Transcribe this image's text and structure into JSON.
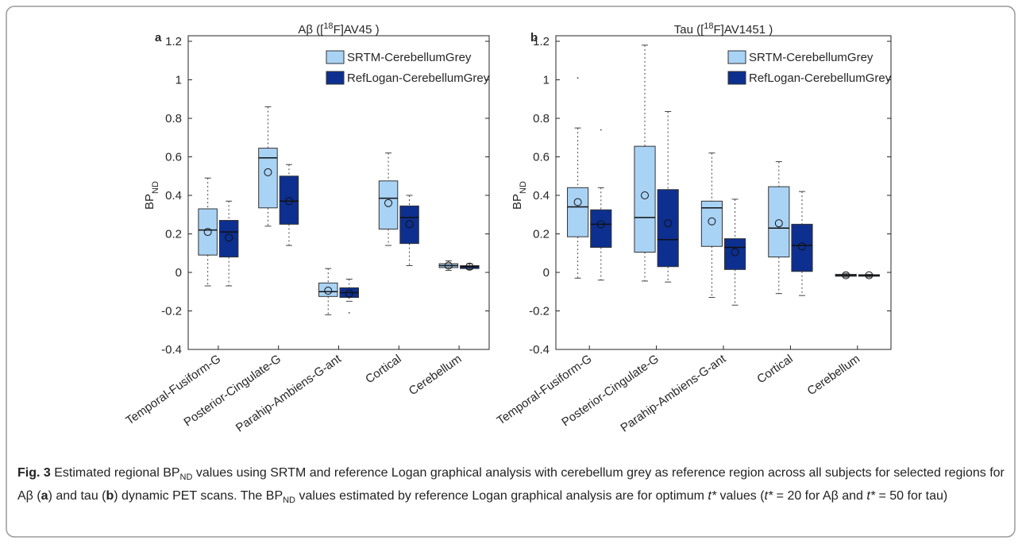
{
  "chart_data": [
    {
      "type": "box",
      "panel_label": "a",
      "title": [
        {
          "text": "Aβ (["
        },
        {
          "text": "18",
          "style": "sup"
        },
        {
          "text": "F]AV45 )"
        }
      ],
      "ylabel": [
        {
          "text": "BP"
        },
        {
          "text": "ND",
          "style": "sub"
        }
      ],
      "categories": [
        "Temporal-Fusiform-G",
        "Posterior-Cingulate-G",
        "Parahip-Ambiens-G-ant",
        "Cortical",
        "Cerebellum"
      ],
      "ylim": [
        -0.4,
        1.2
      ],
      "yticks": [
        -0.4,
        -0.2,
        0,
        0.2,
        0.4,
        0.6,
        0.8,
        1,
        1.2
      ],
      "legend": "upper right",
      "series": [
        {
          "name": "SRTM-CerebellumGrey",
          "color": "#a9d3f5",
          "whislo": [
            -0.07,
            0.24,
            -0.22,
            0.14,
            0.01
          ],
          "q1": [
            0.09,
            0.335,
            -0.125,
            0.225,
            0.025
          ],
          "median": [
            0.22,
            0.595,
            -0.1,
            0.385,
            0.035
          ],
          "q3": [
            0.33,
            0.645,
            -0.055,
            0.475,
            0.045
          ],
          "whishi": [
            0.49,
            0.86,
            0.02,
            0.62,
            0.06
          ],
          "mean": [
            0.21,
            0.52,
            -0.095,
            0.36,
            0.035
          ],
          "outliers": [
            [],
            [],
            [],
            [],
            []
          ]
        },
        {
          "name": "RefLogan-CerebellumGrey",
          "color": "#0d2f8f",
          "whislo": [
            -0.07,
            0.14,
            -0.15,
            0.035,
            0.015
          ],
          "q1": [
            0.08,
            0.25,
            -0.13,
            0.15,
            0.02
          ],
          "median": [
            0.21,
            0.37,
            -0.105,
            0.285,
            0.03
          ],
          "q3": [
            0.27,
            0.5,
            -0.08,
            0.345,
            0.035
          ],
          "whishi": [
            0.37,
            0.56,
            -0.035,
            0.4,
            0.045
          ],
          "mean": [
            0.18,
            0.37,
            -0.11,
            0.25,
            0.03
          ],
          "outliers": [
            [],
            [],
            [
              -0.21
            ],
            [],
            []
          ]
        }
      ]
    },
    {
      "type": "box",
      "panel_label": "b",
      "title": [
        {
          "text": "Tau (["
        },
        {
          "text": "18",
          "style": "sup"
        },
        {
          "text": "F]AV1451 )"
        }
      ],
      "ylabel": [
        {
          "text": "BP"
        },
        {
          "text": "ND",
          "style": "sub"
        }
      ],
      "categories": [
        "Temporal-Fusiform-G",
        "Posterior-Cingulate-G",
        "Parahip-Ambiens-G-ant",
        "Cortical",
        "Cerebellum"
      ],
      "ylim": [
        -0.4,
        1.2
      ],
      "yticks": [
        -0.4,
        -0.2,
        0,
        0.2,
        0.4,
        0.6,
        0.8,
        1,
        1.2
      ],
      "legend": "upper right",
      "series": [
        {
          "name": "SRTM-CerebellumGrey",
          "color": "#a9d3f5",
          "whislo": [
            -0.03,
            -0.045,
            -0.13,
            -0.11,
            -0.025
          ],
          "q1": [
            0.185,
            0.105,
            0.135,
            0.08,
            -0.02
          ],
          "median": [
            0.34,
            0.285,
            0.335,
            0.23,
            -0.015
          ],
          "q3": [
            0.44,
            0.655,
            0.37,
            0.445,
            -0.01
          ],
          "whishi": [
            0.75,
            1.18,
            0.62,
            0.575,
            -0.005
          ],
          "mean": [
            0.365,
            0.4,
            0.265,
            0.255,
            -0.015
          ],
          "outliers": [
            [
              1.01
            ],
            [],
            [],
            [],
            []
          ]
        },
        {
          "name": "RefLogan-CerebellumGrey",
          "color": "#0d2f8f",
          "whislo": [
            -0.04,
            -0.05,
            -0.17,
            -0.12,
            -0.025
          ],
          "q1": [
            0.13,
            0.03,
            0.015,
            0.005,
            -0.02
          ],
          "median": [
            0.25,
            0.17,
            0.13,
            0.14,
            -0.015
          ],
          "q3": [
            0.325,
            0.43,
            0.175,
            0.25,
            -0.012
          ],
          "whishi": [
            0.44,
            0.835,
            0.38,
            0.42,
            -0.01
          ],
          "mean": [
            0.25,
            0.255,
            0.105,
            0.135,
            -0.015
          ],
          "outliers": [
            [
              0.74
            ],
            [],
            [],
            [],
            []
          ]
        }
      ]
    }
  ],
  "caption": [
    {
      "text": "Fig. 3",
      "style": "bold"
    },
    {
      "text": " Estimated regional BP"
    },
    {
      "text": "ND",
      "style": "sub"
    },
    {
      "text": " values using SRTM and reference Logan graphical analysis with cerebellum grey as reference region across all subjects for selected regions for Aβ ("
    },
    {
      "text": "a",
      "style": "bold"
    },
    {
      "text": ") and tau ("
    },
    {
      "text": "b",
      "style": "bold"
    },
    {
      "text": ") dynamic PET scans. The BP"
    },
    {
      "text": "ND",
      "style": "sub"
    },
    {
      "text": " values estimated by reference Logan graphical analysis are for optimum "
    },
    {
      "text": "t*",
      "style": "italic"
    },
    {
      "text": " values ("
    },
    {
      "text": "t*",
      "style": "italic"
    },
    {
      "text": " = 20 for Aβ and "
    },
    {
      "text": "t*",
      "style": "italic"
    },
    {
      "text": " = 50 for tau)"
    }
  ]
}
